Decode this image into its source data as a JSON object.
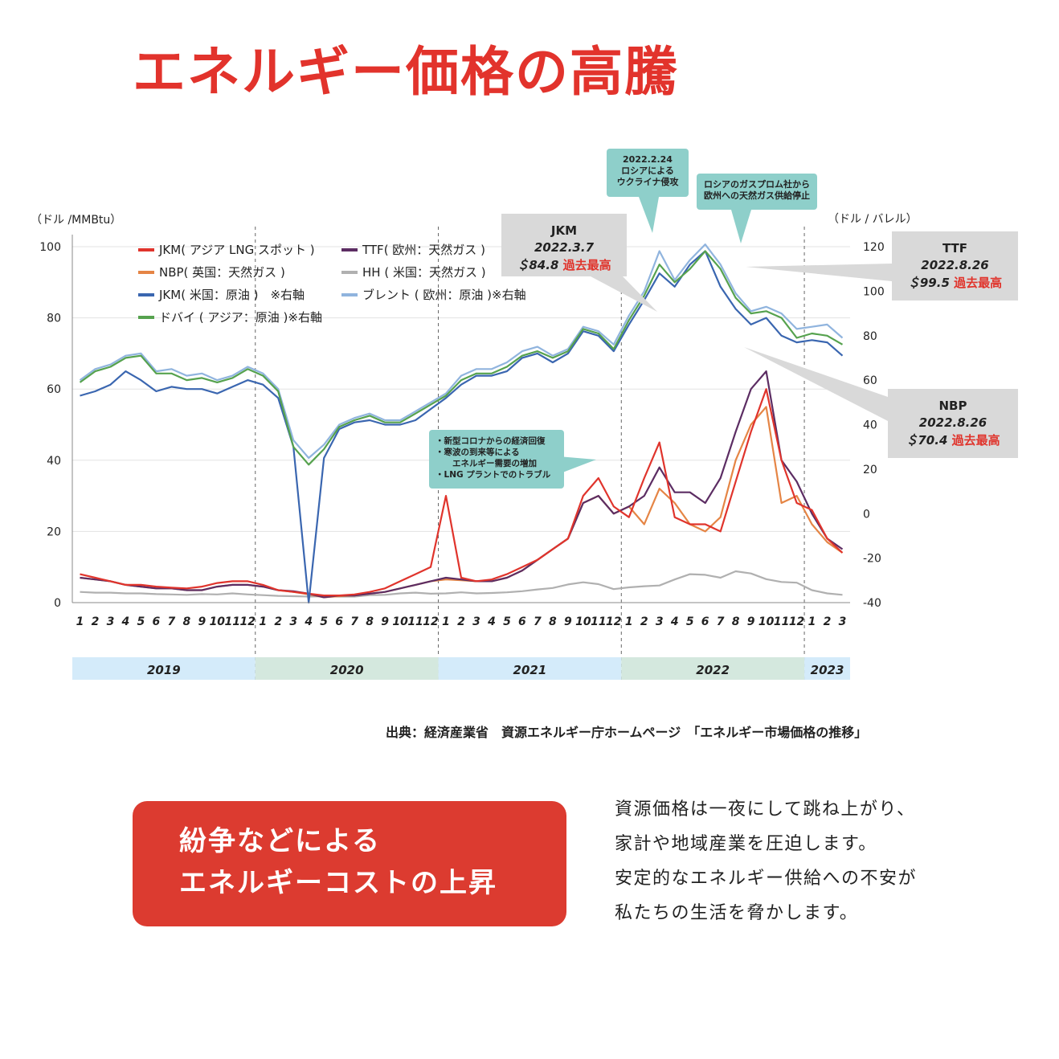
{
  "title": "エネルギー価格の高騰",
  "source": "出典：経済産業省　資源エネルギー庁ホームページ　「エネルギー市場価格の推移」",
  "banner": {
    "lines": [
      "紛争などによる",
      "エネルギーコストの上昇"
    ],
    "color": "#dc3b30"
  },
  "body_text": [
    "資源価格は一夜にして跳ね上がり、",
    "家計や地域産業を圧迫します。",
    "安定的なエネルギー供給への不安が",
    "私たちの生活を脅かします。"
  ],
  "chart_data": {
    "type": "line",
    "ylabel_left": "（ドル /MMBtu）",
    "ylabel_right": "（ドル / バレル）",
    "ylim_left": [
      0,
      100
    ],
    "ylim_right": [
      -40,
      120
    ],
    "yticks_left": [
      "0",
      "20",
      "40",
      "60",
      "80",
      "100"
    ],
    "yticks_right": [
      "-40",
      "-20",
      "0",
      "20",
      "40",
      "60",
      "80",
      "100",
      "120"
    ],
    "month_labels": [
      "1",
      "2",
      "3",
      "4",
      "5",
      "6",
      "7",
      "8",
      "9",
      "10",
      "11",
      "12",
      "1",
      "2",
      "3",
      "4",
      "5",
      "6",
      "7",
      "8",
      "9",
      "10",
      "11",
      "12",
      "1",
      "2",
      "3",
      "4",
      "5",
      "6",
      "7",
      "8",
      "9",
      "10",
      "11",
      "12",
      "1",
      "2",
      "3",
      "4",
      "5",
      "6",
      "7",
      "8",
      "9",
      "10",
      "11",
      "12",
      "1",
      "2",
      "3"
    ],
    "years": [
      {
        "label": "2019",
        "months": 12,
        "color": "#d4ebfa"
      },
      {
        "label": "2020",
        "months": 12,
        "color": "#d4e8de"
      },
      {
        "label": "2021",
        "months": 12,
        "color": "#d4ebfa"
      },
      {
        "label": "2022",
        "months": 12,
        "color": "#d4e8de"
      },
      {
        "label": "2023",
        "months": 3,
        "color": "#d4ebfa"
      }
    ],
    "series": [
      {
        "name": "JKM( アジア LNG スポット )",
        "axis": "left",
        "color": "#e0342c",
        "values": [
          8,
          7,
          6,
          5,
          5,
          4.5,
          4.2,
          4,
          4.5,
          5.5,
          6,
          6,
          5,
          3.5,
          3,
          2.5,
          2,
          2,
          2.3,
          3,
          4,
          6,
          8,
          10,
          30,
          7,
          6,
          6.5,
          8,
          10,
          12,
          15,
          18,
          30,
          35,
          27,
          24,
          35,
          45,
          24,
          22,
          22,
          20,
          34,
          48,
          60,
          40,
          28,
          26,
          18,
          14
        ]
      },
      {
        "name": "TTF( 欧州：天然ガス )",
        "axis": "left",
        "color": "#5c2d63",
        "values": [
          7,
          6.5,
          6,
          5,
          4.5,
          4,
          4,
          3.5,
          3.5,
          4.5,
          5,
          5,
          4.5,
          3.5,
          3.2,
          2.5,
          1.5,
          2,
          2,
          2.5,
          3,
          4,
          5,
          6,
          7,
          6.5,
          6,
          6,
          7,
          9,
          12,
          15,
          18,
          28,
          30,
          25,
          27,
          30,
          38,
          31,
          31,
          28,
          35,
          48,
          60,
          65,
          40,
          34,
          25,
          18,
          15
        ]
      },
      {
        "name": "NBP( 英国：天然ガス )",
        "axis": "left",
        "color": "#e58545",
        "values": [
          7,
          6.5,
          6,
          5,
          4.5,
          4,
          4,
          3.5,
          3.5,
          4.5,
          5,
          5,
          4.5,
          3.5,
          3,
          2.3,
          1.5,
          1.8,
          2,
          2.5,
          3,
          4,
          5,
          6,
          6.5,
          6.3,
          6,
          6,
          7,
          9,
          12,
          15,
          18,
          28,
          30,
          25,
          27,
          22,
          32,
          28,
          22,
          20,
          24,
          40,
          50,
          55,
          28,
          30,
          22,
          17,
          14
        ]
      },
      {
        "name": "HH ( 米国：天然ガス )",
        "axis": "left",
        "color": "#b0b0b0",
        "values": [
          3,
          2.8,
          2.8,
          2.6,
          2.6,
          2.4,
          2.3,
          2.2,
          2.4,
          2.3,
          2.6,
          2.3,
          2.1,
          1.9,
          1.8,
          1.7,
          1.8,
          1.7,
          1.7,
          2.1,
          2.2,
          2.6,
          2.8,
          2.5,
          2.6,
          2.9,
          2.6,
          2.7,
          2.9,
          3.2,
          3.7,
          4.1,
          5.1,
          5.7,
          5.2,
          3.8,
          4.3,
          4.6,
          4.8,
          6.5,
          8.0,
          7.8,
          7.0,
          8.8,
          8.2,
          6.6,
          5.8,
          5.6,
          3.5,
          2.6,
          2.2
        ]
      },
      {
        "name": "JKM( 米国：原油 )　※右軸",
        "axis": "right",
        "color": "#3a66b0",
        "values": [
          53,
          55,
          58,
          64,
          60,
          55,
          57,
          56,
          56,
          54,
          57,
          60,
          58,
          52,
          30,
          -40,
          25,
          38,
          41,
          42,
          40,
          40,
          42,
          47,
          52,
          58,
          62,
          62,
          64,
          70,
          72,
          68,
          72,
          82,
          80,
          73,
          85,
          96,
          108,
          102,
          112,
          118,
          102,
          92,
          85,
          88,
          80,
          77,
          78,
          77,
          71
        ]
      },
      {
        "name": "ブレント ( 欧州：原油 )※右軸",
        "axis": "right",
        "color": "#90b4de",
        "values": [
          60,
          65,
          67,
          71,
          72,
          64,
          65,
          62,
          63,
          60,
          62,
          66,
          63,
          56,
          33,
          25,
          31,
          40,
          43,
          45,
          42,
          42,
          46,
          50,
          54,
          62,
          65,
          65,
          68,
          73,
          75,
          71,
          74,
          84,
          82,
          76,
          89,
          100,
          118,
          105,
          114,
          121,
          112,
          99,
          91,
          93,
          90,
          83,
          84,
          85,
          79
        ]
      },
      {
        "name": "ドバイ ( アジア：原油 )※右軸",
        "axis": "right",
        "color": "#56a24e",
        "values": [
          59,
          64,
          66,
          70,
          71,
          63,
          63,
          60,
          61,
          59,
          61,
          65,
          62,
          55,
          30,
          22,
          29,
          39,
          42,
          44,
          41,
          41,
          45,
          49,
          53,
          60,
          63,
          63,
          66,
          71,
          73,
          70,
          73,
          83,
          81,
          74,
          87,
          98,
          112,
          104,
          110,
          118,
          110,
          97,
          90,
          91,
          88,
          79,
          81,
          80,
          76
        ]
      }
    ],
    "annotations": [
      {
        "target": "JKM",
        "name": "JKM",
        "date": "2022.3.7",
        "value": "＄84.8",
        "note": "過去最高"
      },
      {
        "target": "TTF",
        "name": "TTF",
        "date": "2022.8.26",
        "value": "＄99.5",
        "note": "過去最高"
      },
      {
        "target": "NBP",
        "name": "NBP",
        "date": "2022.8.26",
        "value": "＄70.4",
        "note": "過去最高"
      },
      {
        "name": "ukraine",
        "lines": [
          "2022.2.24",
          "ロシアによる",
          "ウクライナ侵攻"
        ]
      },
      {
        "name": "gazprom",
        "lines": [
          "ロシアのガスプロム社から",
          "欧州への天然ガス供給停止"
        ]
      },
      {
        "name": "corona",
        "lines": [
          "・新型コロナからの経済回復",
          "・寒波の到来等による",
          "　　エネルギー需要の増加",
          "・LNG プラントでのトラブル"
        ]
      }
    ],
    "grid": "horizontal",
    "legend_position": "top-left"
  }
}
